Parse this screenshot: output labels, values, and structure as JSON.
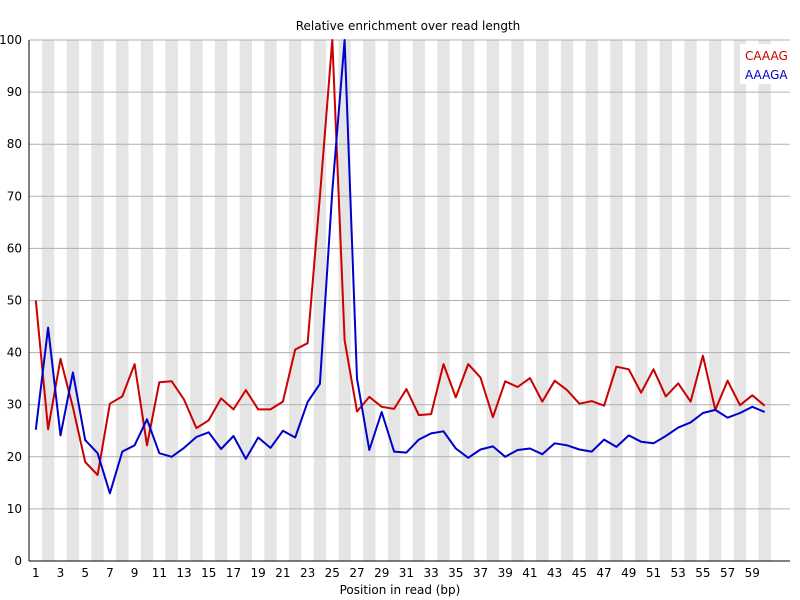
{
  "chart_data": {
    "type": "line",
    "title": "Relative enrichment over read length",
    "xlabel": "Position in read (bp)",
    "ylabel": "",
    "ylim": [
      0,
      100
    ],
    "yticks": [
      0,
      10,
      20,
      30,
      40,
      50,
      60,
      70,
      80,
      90,
      100
    ],
    "x": [
      1,
      2,
      3,
      4,
      5,
      6,
      7,
      8,
      9,
      10,
      11,
      12,
      13,
      14,
      15,
      16,
      17,
      18,
      19,
      20,
      21,
      22,
      23,
      24,
      25,
      26,
      27,
      28,
      29,
      30,
      31,
      32,
      33,
      34,
      35,
      36,
      37,
      38,
      39,
      40,
      41,
      42,
      43,
      44,
      45,
      46,
      47,
      48,
      49,
      50,
      51,
      52,
      53,
      54,
      55,
      56,
      57,
      58,
      59,
      60
    ],
    "xticks": [
      "1",
      "3",
      "5",
      "7",
      "9",
      "11",
      "13",
      "15",
      "17",
      "19",
      "21",
      "23",
      "25",
      "27",
      "29",
      "31",
      "33",
      "35",
      "37",
      "39",
      "41",
      "43",
      "45",
      "47",
      "49",
      "51",
      "53",
      "55",
      "57",
      "59"
    ],
    "grid": "alternating vertical bands",
    "legend_position": "top-right",
    "series": [
      {
        "name": "CAAAG",
        "color": "#cc0000",
        "values": [
          50,
          25.3,
          38.8,
          29.5,
          19,
          16.5,
          30.2,
          31.6,
          37.8,
          22.2,
          34.3,
          34.5,
          31,
          25.5,
          27,
          31.2,
          29.1,
          32.8,
          29.1,
          29.1,
          30.6,
          40.6,
          41.8,
          70,
          100,
          42.4,
          28.7,
          31.5,
          29.6,
          29.2,
          33,
          28,
          28.2,
          37.8,
          31.4,
          37.8,
          35.2,
          27.6,
          34.5,
          33.4,
          35.1,
          30.6,
          34.6,
          32.8,
          30.2,
          30.7,
          29.8,
          37.3,
          36.8,
          32.3,
          36.8,
          31.6,
          34.1,
          30.6,
          39.4,
          29,
          34.6,
          29.9,
          31.8,
          29.8
        ]
      },
      {
        "name": "AAAGA",
        "color": "#0000cc",
        "values": [
          25.2,
          44.8,
          24.1,
          36.2,
          23.2,
          20.7,
          13,
          21,
          22.2,
          27.2,
          20.7,
          20,
          21.7,
          23.8,
          24.7,
          21.5,
          24,
          19.6,
          23.7,
          21.7,
          25,
          23.7,
          30.5,
          34,
          71,
          100,
          35,
          21.3,
          28.6,
          21,
          20.8,
          23.3,
          24.5,
          24.9,
          21.6,
          19.8,
          21.4,
          22,
          20,
          21.3,
          21.6,
          20.5,
          22.6,
          22.2,
          21.4,
          21,
          23.3,
          21.9,
          24.1,
          22.9,
          22.6,
          24,
          25.6,
          26.6,
          28.4,
          29,
          27.5,
          28.4,
          29.6,
          28.6
        ]
      }
    ]
  }
}
